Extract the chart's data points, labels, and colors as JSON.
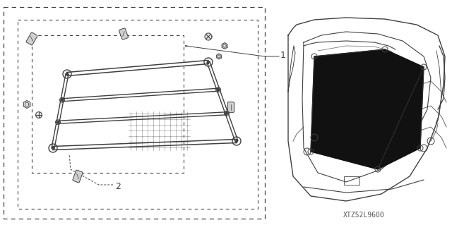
{
  "bg_color": "#ffffff",
  "line_color": "#404040",
  "light_color": "#888888",
  "fig_w": 6.4,
  "fig_h": 3.19,
  "dpi": 100,
  "watermark_text": "XTZ52L9600",
  "label1_text": "1",
  "label2_text": "2"
}
